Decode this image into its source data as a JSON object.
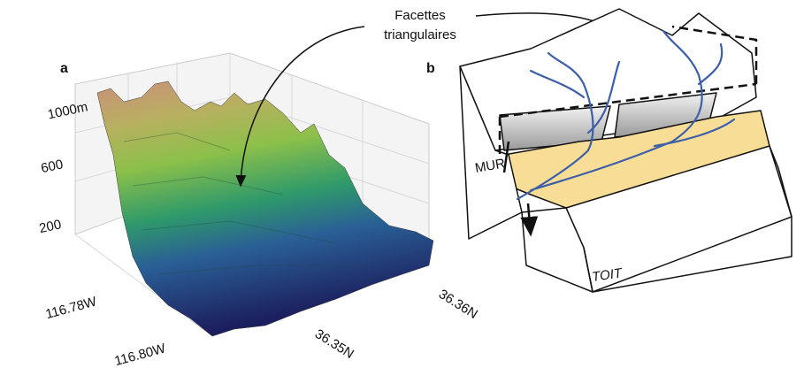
{
  "callout": {
    "lines": [
      "Facettes",
      "triangulaires"
    ]
  },
  "panel_a": {
    "label": "a",
    "z_ticks": [
      "1000m",
      "600",
      "200"
    ],
    "lon_ticks": [
      "116.78W",
      "116.80W"
    ],
    "lat_ticks": [
      "36.35N",
      "36.36N"
    ]
  },
  "panel_b": {
    "label": "b",
    "hanging_wall": "MUR",
    "footwall": "TOIT"
  }
}
